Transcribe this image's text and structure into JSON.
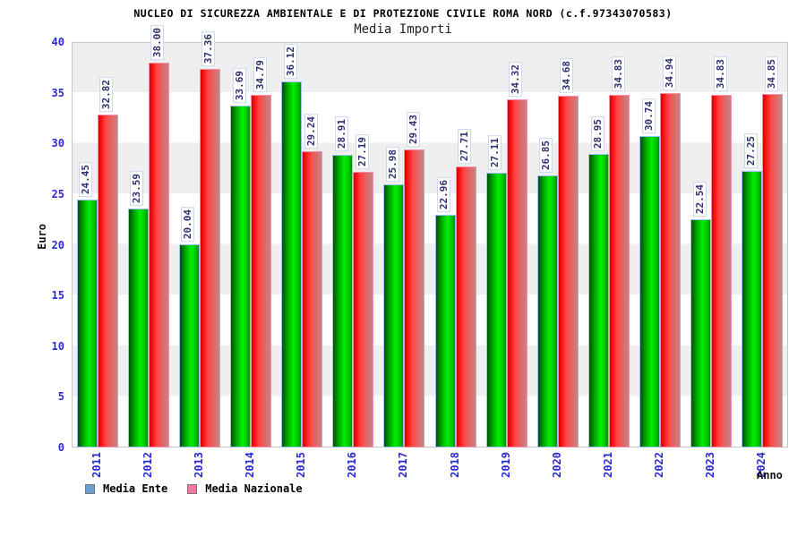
{
  "title": "NUCLEO DI SICUREZZA AMBIENTALE E DI PROTEZIONE CIVILE ROMA NORD (c.f.97343070583)",
  "subtitle": "Media Importi",
  "y_axis_label": "Euro",
  "x_axis_label": "Anno",
  "legend": {
    "items": [
      {
        "label": "Media Ente",
        "swatch_color": "#6e9fd4"
      },
      {
        "label": "Media Nazionale",
        "swatch_color": "#ef7b9d"
      }
    ]
  },
  "colors": {
    "axis_text": "#2a2ad0",
    "value_label_text": "#303070",
    "band_gray": "#efefef",
    "bar_ente_highlight": "#00ef00",
    "bar_nazionale_highlight": "#ff4444",
    "legend_ente": "#6e9fd4",
    "legend_nazionale": "#ef7b9d"
  },
  "chart_data": {
    "type": "bar",
    "title": "NUCLEO DI SICUREZZA AMBIENTALE E DI PROTEZIONE CIVILE ROMA NORD (c.f.97343070583)",
    "subtitle": "Media Importi",
    "xlabel": "Anno",
    "ylabel": "Euro",
    "ylim": [
      0,
      40
    ],
    "y_ticks": [
      0,
      5,
      10,
      15,
      20,
      25,
      30,
      35,
      40
    ],
    "grid": "alternating horizontal bands every 5 units, gray on 5-10/15-20/25-30/35-40",
    "legend_position": "bottom-left",
    "categories": [
      "2011",
      "2012",
      "2013",
      "2014",
      "2015",
      "2016",
      "2017",
      "2018",
      "2019",
      "2020",
      "2021",
      "2022",
      "2023",
      "2024"
    ],
    "series": [
      {
        "name": "Media Ente",
        "bar_style": "green gradient cylinder, light blue border",
        "values": [
          24.45,
          23.59,
          20.04,
          33.69,
          36.12,
          28.91,
          25.98,
          22.96,
          27.11,
          26.85,
          28.95,
          30.74,
          22.54,
          27.25
        ]
      },
      {
        "name": "Media Nazionale",
        "bar_style": "red gradient cylinder, pink border",
        "values": [
          32.82,
          38.0,
          37.36,
          34.79,
          29.24,
          27.19,
          29.43,
          27.71,
          34.32,
          34.68,
          34.83,
          34.94,
          34.83,
          34.85
        ]
      }
    ]
  }
}
